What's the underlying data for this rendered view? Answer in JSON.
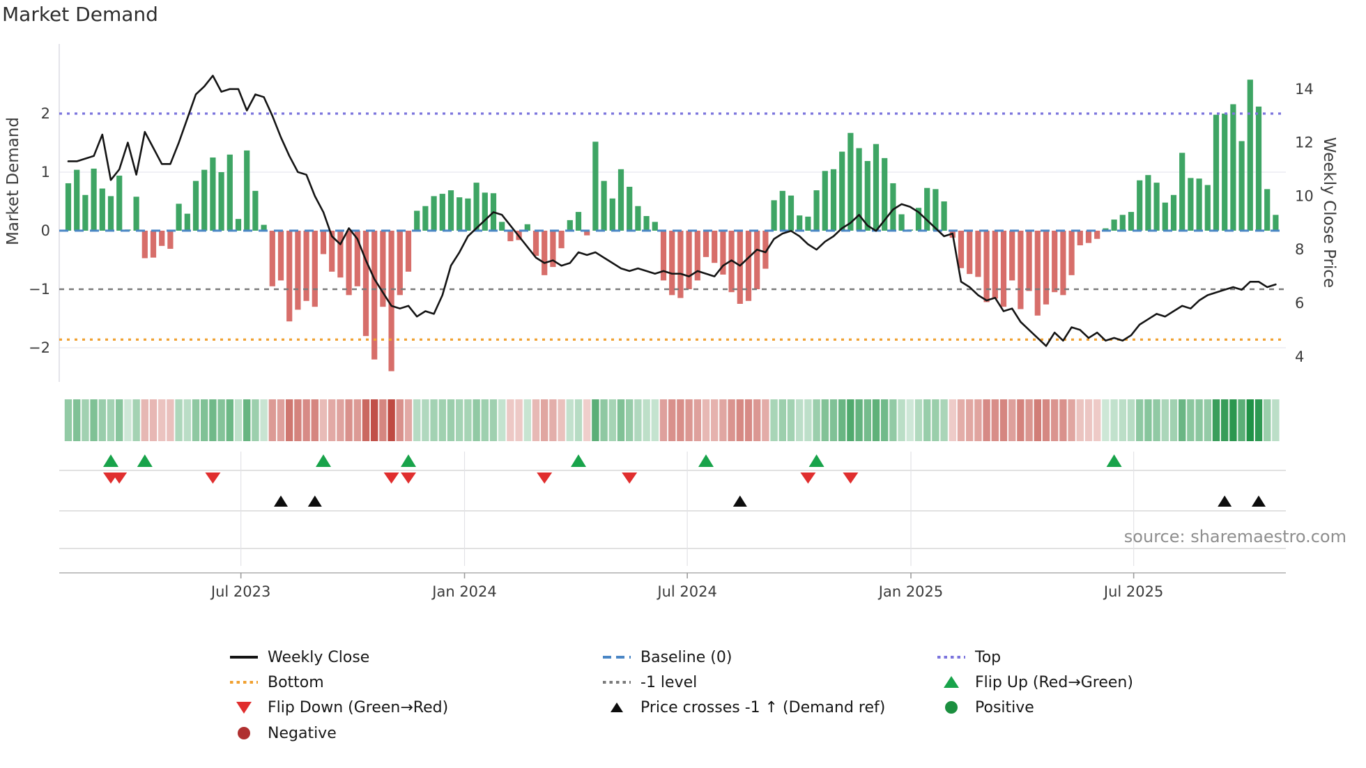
{
  "title": "Market Demand",
  "source": "source: sharemaestro.com",
  "left_axis": {
    "label": "Market Demand",
    "ticks": [
      "2",
      "1",
      "0",
      "−1",
      "−2"
    ],
    "tick_values": [
      2,
      1,
      0,
      -1,
      -2
    ]
  },
  "right_axis": {
    "label": "Weekly Close Price",
    "ticks": [
      "4",
      "6",
      "8",
      "10",
      "12",
      "14"
    ],
    "tick_values": [
      4,
      6,
      8,
      10,
      12,
      14
    ]
  },
  "x_axis": {
    "ticks": [
      "Jul 2023",
      "Jan 2024",
      "Jul 2024",
      "Jan 2025",
      "Jul 2025"
    ]
  },
  "legend": {
    "weekly_close": "Weekly Close",
    "baseline": "Baseline (0)",
    "top": "Top",
    "bottom": "Bottom",
    "minus_one": "-1 level",
    "flip_up": "Flip Up (Red→Green)",
    "flip_down": "Flip Down (Green→Red)",
    "price_cross": "Price crosses -1 ↑ (Demand ref)",
    "positive": "Positive",
    "negative": "Negative"
  },
  "colors": {
    "bar_positive": "#2f9e58",
    "bar_negative": "#d4635f",
    "weekly_close": "#141414",
    "baseline": "#4a86c5",
    "top": "#7b74dd",
    "bottom": "#f0a030",
    "minus_one": "#7a7a7a",
    "flip_up": "#18a34a",
    "flip_down": "#e02e2e",
    "price_cross": "#0d0d0d",
    "positive_dot": "#1b8f3f",
    "negative_dot": "#b03030",
    "heat_green": "#209246",
    "heat_red": "#bf4a42"
  },
  "chart_data": {
    "type": "bar+line",
    "title": "Market Demand",
    "xlabel": "",
    "ylabel_left": "Market Demand",
    "ylabel_right": "Weekly Close Price",
    "x_ticks": [
      "Jul 2023",
      "Jan 2024",
      "Jul 2024",
      "Jan 2025",
      "Jul 2025"
    ],
    "ylim_left": [
      -2.6,
      3.2
    ],
    "ylim_right": [
      3.0,
      15.7
    ],
    "frequency": "weekly",
    "weeks": 143,
    "levels": {
      "baseline": 0,
      "minus_one": -1,
      "top": 2,
      "bottom": -1.86
    },
    "demand": [
      0.81,
      1.04,
      0.61,
      1.06,
      0.72,
      0.59,
      0.94,
      0.02,
      0.58,
      -0.47,
      -0.46,
      -0.26,
      -0.31,
      0.46,
      0.29,
      0.85,
      1.04,
      1.25,
      1.0,
      1.3,
      0.2,
      1.37,
      0.68,
      0.1,
      -0.95,
      -0.85,
      -1.55,
      -1.35,
      -1.2,
      -1.3,
      -0.4,
      -0.7,
      -0.8,
      -1.1,
      -0.95,
      -1.8,
      -2.2,
      -1.3,
      -2.4,
      -1.1,
      -0.7,
      0.34,
      0.42,
      0.59,
      0.63,
      0.69,
      0.57,
      0.55,
      0.82,
      0.65,
      0.64,
      0.15,
      -0.18,
      -0.16,
      0.11,
      -0.43,
      -0.76,
      -0.62,
      -0.3,
      0.18,
      0.32,
      -0.08,
      1.52,
      0.85,
      0.55,
      1.05,
      0.75,
      0.42,
      0.25,
      0.15,
      -0.85,
      -1.1,
      -1.15,
      -1.0,
      -0.85,
      -0.45,
      -0.55,
      -0.75,
      -1.05,
      -1.25,
      -1.2,
      -1.0,
      -0.65,
      0.52,
      0.68,
      0.6,
      0.26,
      0.24,
      0.69,
      1.02,
      1.05,
      1.35,
      1.67,
      1.41,
      1.19,
      1.48,
      1.24,
      0.81,
      0.28,
      0.02,
      0.39,
      0.73,
      0.71,
      0.5,
      -0.12,
      -0.64,
      -0.74,
      -0.79,
      -1.22,
      -1.16,
      -1.3,
      -0.85,
      -1.34,
      -1.03,
      -1.45,
      -1.26,
      -1.05,
      -1.1,
      -0.76,
      -0.25,
      -0.21,
      -0.14,
      0.04,
      0.19,
      0.27,
      0.32,
      0.86,
      0.95,
      0.82,
      0.48,
      0.61,
      1.33,
      0.9,
      0.89,
      0.78,
      1.98,
      2.0,
      2.16,
      1.53,
      2.58,
      2.12,
      0.71,
      0.27
    ],
    "weekly_close": [
      11.3,
      11.3,
      11.4,
      11.5,
      12.3,
      10.6,
      11.0,
      12.0,
      10.8,
      12.4,
      11.8,
      11.2,
      11.2,
      12.0,
      12.9,
      13.8,
      14.1,
      14.5,
      13.9,
      14.0,
      14.0,
      13.2,
      13.8,
      13.7,
      13.0,
      12.2,
      11.5,
      10.9,
      10.8,
      10.0,
      9.4,
      8.5,
      8.2,
      8.8,
      8.4,
      7.6,
      6.9,
      6.4,
      5.9,
      5.8,
      5.9,
      5.5,
      5.7,
      5.6,
      6.3,
      7.4,
      7.9,
      8.5,
      8.8,
      9.1,
      9.4,
      9.3,
      8.9,
      8.5,
      8.1,
      7.7,
      7.5,
      7.6,
      7.4,
      7.5,
      7.9,
      7.8,
      7.9,
      7.7,
      7.5,
      7.3,
      7.2,
      7.3,
      7.2,
      7.1,
      7.2,
      7.1,
      7.1,
      7.0,
      7.2,
      7.1,
      7.0,
      7.4,
      7.6,
      7.4,
      7.7,
      8.0,
      7.9,
      8.4,
      8.6,
      8.7,
      8.5,
      8.2,
      8.0,
      8.3,
      8.5,
      8.8,
      9.0,
      9.3,
      8.9,
      8.7,
      9.1,
      9.5,
      9.7,
      9.6,
      9.4,
      9.1,
      8.8,
      8.5,
      8.6,
      6.8,
      6.6,
      6.3,
      6.1,
      6.2,
      5.7,
      5.8,
      5.3,
      5.0,
      4.7,
      4.4,
      4.9,
      4.6,
      5.1,
      5.0,
      4.7,
      4.9,
      4.6,
      4.7,
      4.6,
      4.8,
      5.2,
      5.4,
      5.6,
      5.5,
      5.7,
      5.9,
      5.8,
      6.1,
      6.3,
      6.4,
      6.5,
      6.6,
      6.5,
      6.8,
      6.8,
      6.6,
      6.7
    ],
    "markers": {
      "flip_up_weeks": [
        5,
        9,
        30,
        40,
        60,
        75,
        88,
        123
      ],
      "flip_down_weeks": [
        5,
        6,
        17,
        38,
        40,
        56,
        66,
        87,
        92
      ],
      "price_cross_weeks": [
        25,
        29,
        79,
        136,
        140
      ]
    },
    "heatmap_strip": "demand values rendered as red-green intensity cells below main panel"
  }
}
